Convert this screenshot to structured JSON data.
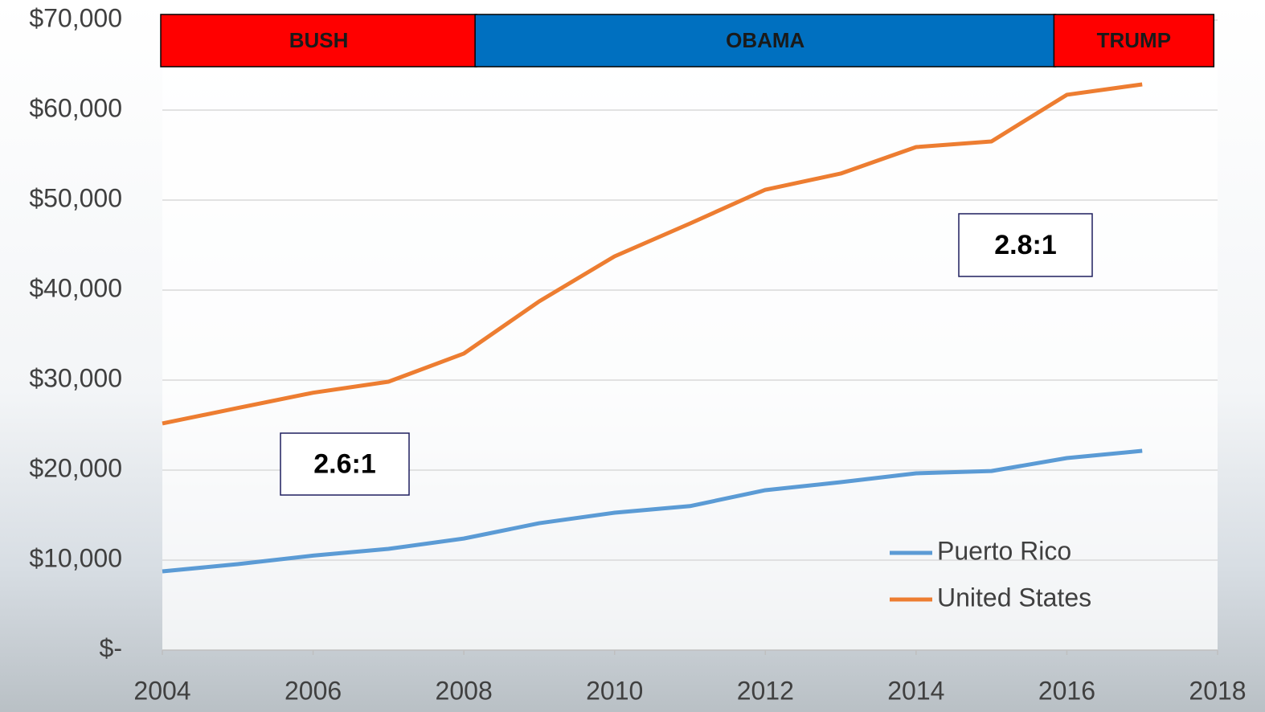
{
  "chart_data": {
    "type": "line",
    "x": [
      2004,
      2005,
      2006,
      2007,
      2008,
      2009,
      2010,
      2011,
      2012,
      2013,
      2014,
      2015,
      2016,
      2017
    ],
    "series": [
      {
        "name": "Puerto Rico",
        "color": "#5b9bd5",
        "values": [
          8750,
          9550,
          10500,
          11250,
          12400,
          14100,
          15270,
          16000,
          17770,
          18660,
          19640,
          19900,
          21340,
          22140
        ]
      },
      {
        "name": "United States",
        "color": "#ed7d31",
        "values": [
          25180,
          26900,
          28600,
          29820,
          32950,
          38750,
          43750,
          47400,
          51160,
          52950,
          55890,
          56520,
          61700,
          62860
        ]
      }
    ],
    "xlim": [
      2004,
      2018
    ],
    "xticks": [
      2004,
      2006,
      2008,
      2010,
      2012,
      2014,
      2016,
      2018
    ],
    "ylim": [
      0,
      70000
    ],
    "yticks": [
      {
        "value": 0,
        "label": "$-"
      },
      {
        "value": 10000,
        "label": "$10,000"
      },
      {
        "value": 20000,
        "label": "$20,000"
      },
      {
        "value": 30000,
        "label": "$30,000"
      },
      {
        "value": 40000,
        "label": "$40,000"
      },
      {
        "value": 50000,
        "label": "$50,000"
      },
      {
        "value": 60000,
        "label": "$60,000"
      },
      {
        "value": 70000,
        "label": "$70,000"
      }
    ],
    "grid": true,
    "legend": "lower right",
    "periods": [
      {
        "label": "BUSH",
        "start": 2004,
        "end": 2008.17,
        "color": "#ff0000"
      },
      {
        "label": "OBAMA",
        "start": 2008.17,
        "end": 2015.85,
        "color": "#0070c0"
      },
      {
        "label": "TRUMP",
        "start": 2015.85,
        "end": 2017.95,
        "color": "#ff0000"
      }
    ],
    "annotations": [
      "2.6:1",
      "2.8:1"
    ]
  }
}
